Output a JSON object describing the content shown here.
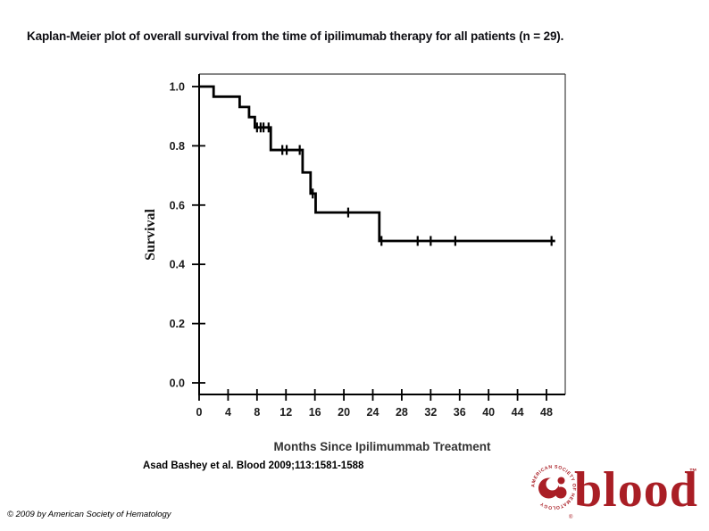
{
  "title": "Kaplan-Meier plot of overall survival from the time of ipilimumab therapy for all patients (n = 29).",
  "citation": "Asad Bashey et al. Blood 2009;113:1581-1588",
  "copyright": "© 2009 by American Society of Hematology",
  "logo": {
    "wordmark": "blood",
    "trademark": "™",
    "registered": "®",
    "emblem_text": "AMERICAN SOCIETY OF HEMATOLOGY",
    "color": "#a91e25"
  },
  "chart_data": {
    "type": "line",
    "subtype": "kaplan-meier-step",
    "title": "",
    "xlabel": "Months Since Ipilimummab Treatment",
    "ylabel": "Survival",
    "xlim": [
      0,
      50
    ],
    "ylim": [
      0.0,
      1.0
    ],
    "xticks": [
      0,
      4,
      8,
      12,
      16,
      20,
      24,
      28,
      32,
      36,
      40,
      44,
      48
    ],
    "yticks": [
      1.0,
      0.8,
      0.6,
      0.4,
      0.2,
      0.0
    ],
    "grid": false,
    "legend": "none",
    "n_patients": 29,
    "line_color": "#000000",
    "frame_color": "#3f3f3f",
    "series": [
      {
        "name": "Overall survival, all patients (n = 29)",
        "steps": [
          [
            0,
            1.0
          ],
          [
            2.0,
            0.966
          ],
          [
            5.6,
            0.931
          ],
          [
            6.9,
            0.897
          ],
          [
            7.7,
            0.862
          ],
          [
            9.9,
            0.786
          ],
          [
            14.3,
            0.71
          ],
          [
            15.4,
            0.639
          ],
          [
            16.1,
            0.575
          ],
          [
            24.9,
            0.479
          ]
        ],
        "end_time": 49.2,
        "censored": [
          [
            8.0,
            0.862
          ],
          [
            8.5,
            0.862
          ],
          [
            8.9,
            0.862
          ],
          [
            9.6,
            0.862
          ],
          [
            11.5,
            0.786
          ],
          [
            12.1,
            0.786
          ],
          [
            13.9,
            0.786
          ],
          [
            15.7,
            0.639
          ],
          [
            20.6,
            0.575
          ],
          [
            25.2,
            0.479
          ],
          [
            30.2,
            0.479
          ],
          [
            32.0,
            0.479
          ],
          [
            35.4,
            0.479
          ],
          [
            48.7,
            0.479
          ]
        ]
      }
    ]
  }
}
